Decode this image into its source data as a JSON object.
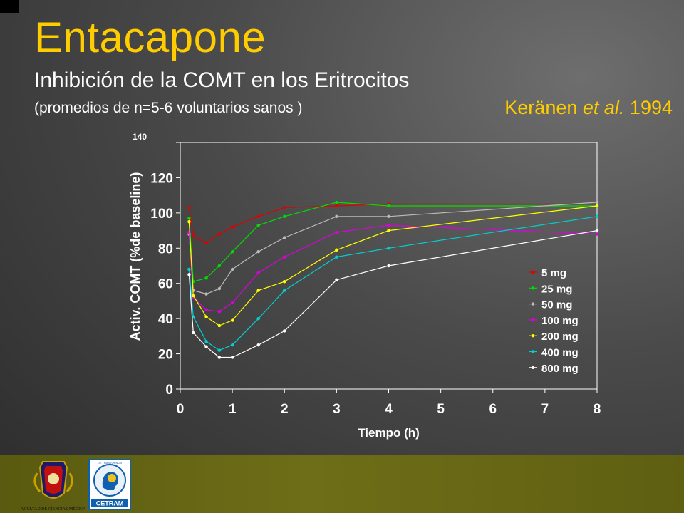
{
  "slide": {
    "title": "Entacapone",
    "subtitle": "Inhibición de la COMT en los Eritrocitos",
    "note": "(promedios de  n=5-6   voluntarios sanos )",
    "citation_author": "Keränen ",
    "citation_etal": "et al.",
    "citation_year": " 1994"
  },
  "logos": {
    "faculty_text": "FACULTAD DE CIENCIAS MÉDICAS",
    "cetram_text": "CETRAM",
    "cetram_ring_text": "DE TRASTORNOS"
  },
  "chart_data": {
    "type": "line",
    "xlabel": "Tiempo (h)",
    "ylabel": "Activ. COMT (%de  baseline)",
    "xlim": [
      0,
      8
    ],
    "ylim": [
      0,
      140
    ],
    "x_ticks": [
      "0",
      "1",
      "2",
      "3",
      "4",
      "5",
      "6",
      "7",
      "8"
    ],
    "y_ticks": [
      "0",
      "20",
      "40",
      "60",
      "80",
      "100",
      "120",
      "140"
    ],
    "grid": false,
    "legend_position": "right",
    "series": [
      {
        "name": "5 mg",
        "color": "#e00000",
        "x": [
          0.17,
          0.25,
          0.5,
          0.75,
          1,
          1.5,
          2,
          3,
          4,
          8
        ],
        "y": [
          103,
          87,
          83,
          88,
          92,
          98,
          103,
          104,
          105,
          105
        ]
      },
      {
        "name": "25 mg",
        "color": "#00dd00",
        "x": [
          0.17,
          0.25,
          0.5,
          0.75,
          1,
          1.5,
          2,
          3,
          4,
          8
        ],
        "y": [
          97,
          61,
          63,
          70,
          78,
          93,
          98,
          106,
          104,
          104
        ]
      },
      {
        "name": "50 mg",
        "color": "#bbbbbb",
        "x": [
          0.17,
          0.25,
          0.5,
          0.75,
          1,
          1.5,
          2,
          3,
          4,
          8
        ],
        "y": [
          88,
          56,
          54,
          57,
          68,
          78,
          86,
          98,
          98,
          106
        ]
      },
      {
        "name": "100 mg",
        "color": "#dd00dd",
        "x": [
          0.17,
          0.25,
          0.5,
          0.75,
          1,
          1.5,
          2,
          3,
          4,
          8
        ],
        "y": [
          89,
          52,
          45,
          44,
          49,
          66,
          75,
          89,
          93,
          88
        ]
      },
      {
        "name": "200 mg",
        "color": "#ffff00",
        "x": [
          0.17,
          0.25,
          0.5,
          0.75,
          1,
          1.5,
          2,
          3,
          4,
          8
        ],
        "y": [
          95,
          53,
          41,
          36,
          39,
          56,
          61,
          79,
          90,
          104
        ]
      },
      {
        "name": "400 mg",
        "color": "#00d0d0",
        "x": [
          0.17,
          0.25,
          0.5,
          0.75,
          1,
          1.5,
          2,
          3,
          4,
          8
        ],
        "y": [
          68,
          41,
          27,
          22,
          25,
          40,
          56,
          75,
          80,
          98
        ]
      },
      {
        "name": "800 mg",
        "color": "#ffffff",
        "x": [
          0.17,
          0.25,
          0.5,
          0.75,
          1,
          1.5,
          2,
          3,
          4,
          8
        ],
        "y": [
          65,
          32,
          24,
          18,
          18,
          25,
          33,
          62,
          70,
          90
        ]
      }
    ]
  }
}
